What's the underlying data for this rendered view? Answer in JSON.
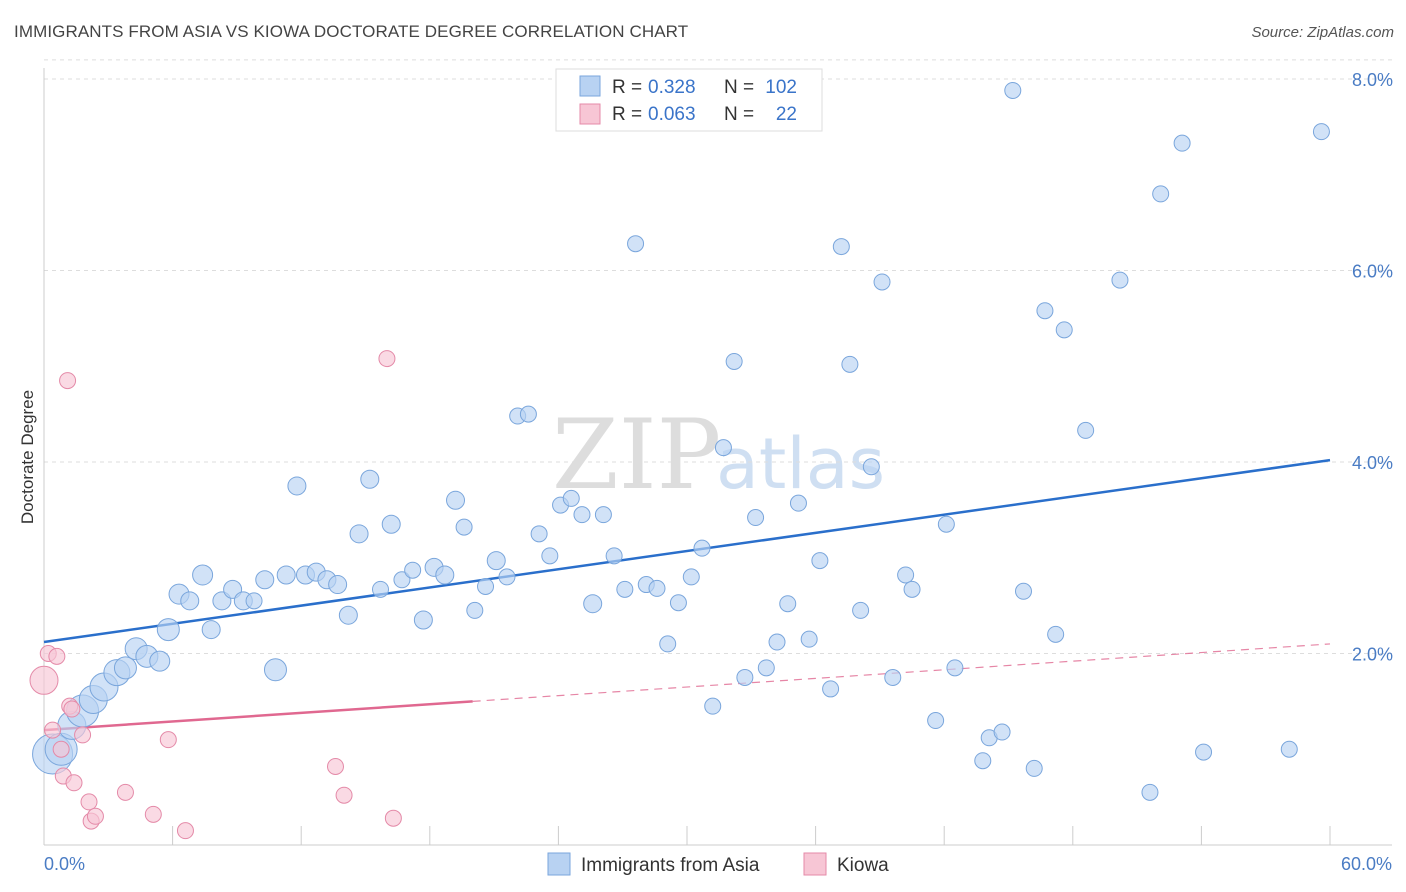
{
  "title": "IMMIGRANTS FROM ASIA VS KIOWA DOCTORATE DEGREE CORRELATION CHART",
  "source": "Source: ZipAtlas.com",
  "watermark": {
    "part1": "ZIP",
    "part2": "atlas"
  },
  "colors": {
    "blue_fill": "#b8d2f2",
    "blue_stroke": "#7aa6dc",
    "blue_line": "#2a6fcb",
    "pink_fill": "#f7c6d5",
    "pink_stroke": "#e48aa8",
    "pink_line": "#e06890",
    "grid": "#dddddd",
    "axis_text": "#4a7cc4"
  },
  "legend": {
    "rows": [
      {
        "r_label": "R =",
        "r_value": "0.328",
        "n_label": "N =",
        "n_value": "102"
      },
      {
        "r_label": "R =",
        "r_value": "0.063",
        "n_label": "N =",
        "n_value": "22"
      }
    ]
  },
  "bottom_legend": [
    "Immigrants from Asia",
    "Kiowa"
  ],
  "chart_data": {
    "type": "scatter",
    "title": "IMMIGRANTS FROM ASIA VS KIOWA DOCTORATE DEGREE CORRELATION CHART",
    "xlabel": "",
    "ylabel": "Doctorate Degree",
    "xlim": [
      0,
      60
    ],
    "ylim": [
      0,
      8.4
    ],
    "x_tick_labels": [
      "0.0%",
      "60.0%"
    ],
    "y_ticks": [
      2,
      4,
      6,
      8
    ],
    "y_tick_labels": [
      "2.0%",
      "4.0%",
      "6.0%",
      "8.0%"
    ],
    "grid": true,
    "legend_position": "top-center",
    "series": [
      {
        "name": "Immigrants from Asia",
        "color": "#b8d2f2",
        "trend": {
          "x": [
            0,
            60
          ],
          "y": [
            2.12,
            4.02
          ]
        },
        "points": [
          {
            "x": 0.4,
            "y": 0.95,
            "s": 20
          },
          {
            "x": 0.8,
            "y": 1.0,
            "s": 16
          },
          {
            "x": 1.3,
            "y": 1.25,
            "s": 14
          },
          {
            "x": 1.8,
            "y": 1.4,
            "s": 16
          },
          {
            "x": 2.3,
            "y": 1.52,
            "s": 14
          },
          {
            "x": 2.8,
            "y": 1.65,
            "s": 14
          },
          {
            "x": 3.4,
            "y": 1.8,
            "s": 13
          },
          {
            "x": 3.8,
            "y": 1.85,
            "s": 11
          },
          {
            "x": 4.3,
            "y": 2.05,
            "s": 11
          },
          {
            "x": 4.8,
            "y": 1.97,
            "s": 11
          },
          {
            "x": 5.4,
            "y": 1.92,
            "s": 10
          },
          {
            "x": 5.8,
            "y": 2.25,
            "s": 11
          },
          {
            "x": 6.3,
            "y": 2.62,
            "s": 10
          },
          {
            "x": 6.8,
            "y": 2.55,
            "s": 9
          },
          {
            "x": 7.4,
            "y": 2.82,
            "s": 10
          },
          {
            "x": 7.8,
            "y": 2.25,
            "s": 9
          },
          {
            "x": 8.3,
            "y": 2.55,
            "s": 9
          },
          {
            "x": 8.8,
            "y": 2.67,
            "s": 9
          },
          {
            "x": 9.3,
            "y": 2.55,
            "s": 9
          },
          {
            "x": 9.8,
            "y": 2.55,
            "s": 8
          },
          {
            "x": 10.3,
            "y": 2.77,
            "s": 9
          },
          {
            "x": 10.8,
            "y": 1.83,
            "s": 11
          },
          {
            "x": 11.3,
            "y": 2.82,
            "s": 9
          },
          {
            "x": 11.8,
            "y": 3.75,
            "s": 9
          },
          {
            "x": 12.2,
            "y": 2.82,
            "s": 9
          },
          {
            "x": 12.7,
            "y": 2.85,
            "s": 9
          },
          {
            "x": 13.2,
            "y": 2.77,
            "s": 9
          },
          {
            "x": 13.7,
            "y": 2.72,
            "s": 9
          },
          {
            "x": 14.2,
            "y": 2.4,
            "s": 9
          },
          {
            "x": 14.7,
            "y": 3.25,
            "s": 9
          },
          {
            "x": 15.2,
            "y": 3.82,
            "s": 9
          },
          {
            "x": 15.7,
            "y": 2.67,
            "s": 8
          },
          {
            "x": 16.2,
            "y": 3.35,
            "s": 9
          },
          {
            "x": 16.7,
            "y": 2.77,
            "s": 8
          },
          {
            "x": 17.2,
            "y": 2.87,
            "s": 8
          },
          {
            "x": 17.7,
            "y": 2.35,
            "s": 9
          },
          {
            "x": 18.2,
            "y": 2.9,
            "s": 9
          },
          {
            "x": 18.7,
            "y": 2.82,
            "s": 9
          },
          {
            "x": 19.2,
            "y": 3.6,
            "s": 9
          },
          {
            "x": 19.6,
            "y": 3.32,
            "s": 8
          },
          {
            "x": 20.1,
            "y": 2.45,
            "s": 8
          },
          {
            "x": 20.6,
            "y": 2.7,
            "s": 8
          },
          {
            "x": 21.1,
            "y": 2.97,
            "s": 9
          },
          {
            "x": 21.6,
            "y": 2.8,
            "s": 8
          },
          {
            "x": 22.1,
            "y": 4.48,
            "s": 8
          },
          {
            "x": 22.6,
            "y": 4.5,
            "s": 8
          },
          {
            "x": 23.1,
            "y": 3.25,
            "s": 8
          },
          {
            "x": 23.6,
            "y": 3.02,
            "s": 8
          },
          {
            "x": 24.1,
            "y": 3.55,
            "s": 8
          },
          {
            "x": 24.6,
            "y": 3.62,
            "s": 8
          },
          {
            "x": 25.1,
            "y": 3.45,
            "s": 8
          },
          {
            "x": 25.6,
            "y": 2.52,
            "s": 9
          },
          {
            "x": 26.1,
            "y": 3.45,
            "s": 8
          },
          {
            "x": 26.6,
            "y": 3.02,
            "s": 8
          },
          {
            "x": 27.1,
            "y": 2.67,
            "s": 8
          },
          {
            "x": 27.6,
            "y": 6.28,
            "s": 8
          },
          {
            "x": 28.1,
            "y": 2.72,
            "s": 8
          },
          {
            "x": 28.6,
            "y": 2.68,
            "s": 8
          },
          {
            "x": 29.1,
            "y": 2.1,
            "s": 8
          },
          {
            "x": 29.6,
            "y": 2.53,
            "s": 8
          },
          {
            "x": 30.2,
            "y": 2.8,
            "s": 8
          },
          {
            "x": 30.7,
            "y": 3.1,
            "s": 8
          },
          {
            "x": 31.2,
            "y": 1.45,
            "s": 8
          },
          {
            "x": 31.7,
            "y": 4.15,
            "s": 8
          },
          {
            "x": 32.2,
            "y": 5.05,
            "s": 8
          },
          {
            "x": 32.7,
            "y": 1.75,
            "s": 8
          },
          {
            "x": 33.2,
            "y": 3.42,
            "s": 8
          },
          {
            "x": 33.7,
            "y": 1.85,
            "s": 8
          },
          {
            "x": 34.2,
            "y": 2.12,
            "s": 8
          },
          {
            "x": 34.7,
            "y": 2.52,
            "s": 8
          },
          {
            "x": 35.2,
            "y": 3.57,
            "s": 8
          },
          {
            "x": 35.7,
            "y": 2.15,
            "s": 8
          },
          {
            "x": 36.2,
            "y": 2.97,
            "s": 8
          },
          {
            "x": 36.7,
            "y": 1.63,
            "s": 8
          },
          {
            "x": 37.2,
            "y": 6.25,
            "s": 8
          },
          {
            "x": 37.6,
            "y": 5.02,
            "s": 8
          },
          {
            "x": 38.1,
            "y": 2.45,
            "s": 8
          },
          {
            "x": 38.6,
            "y": 3.95,
            "s": 8
          },
          {
            "x": 39.1,
            "y": 5.88,
            "s": 8
          },
          {
            "x": 39.6,
            "y": 1.75,
            "s": 8
          },
          {
            "x": 40.2,
            "y": 2.82,
            "s": 8
          },
          {
            "x": 40.5,
            "y": 2.67,
            "s": 8
          },
          {
            "x": 41.6,
            "y": 1.3,
            "s": 8
          },
          {
            "x": 42.1,
            "y": 3.35,
            "s": 8
          },
          {
            "x": 42.5,
            "y": 1.85,
            "s": 8
          },
          {
            "x": 43.8,
            "y": 0.88,
            "s": 8
          },
          {
            "x": 44.1,
            "y": 1.12,
            "s": 8
          },
          {
            "x": 44.7,
            "y": 1.18,
            "s": 8
          },
          {
            "x": 45.2,
            "y": 7.88,
            "s": 8
          },
          {
            "x": 45.7,
            "y": 2.65,
            "s": 8
          },
          {
            "x": 46.2,
            "y": 0.8,
            "s": 8
          },
          {
            "x": 46.7,
            "y": 5.58,
            "s": 8
          },
          {
            "x": 47.2,
            "y": 2.2,
            "s": 8
          },
          {
            "x": 47.6,
            "y": 5.38,
            "s": 8
          },
          {
            "x": 48.6,
            "y": 4.33,
            "s": 8
          },
          {
            "x": 50.2,
            "y": 5.9,
            "s": 8
          },
          {
            "x": 51.6,
            "y": 0.55,
            "s": 8
          },
          {
            "x": 52.1,
            "y": 6.8,
            "s": 8
          },
          {
            "x": 53.1,
            "y": 7.33,
            "s": 8
          },
          {
            "x": 54.1,
            "y": 0.97,
            "s": 8
          },
          {
            "x": 58.1,
            "y": 1.0,
            "s": 8
          },
          {
            "x": 59.6,
            "y": 7.45,
            "s": 8
          }
        ]
      },
      {
        "name": "Kiowa",
        "color": "#f7c6d5",
        "trend": {
          "x": [
            0,
            20
          ],
          "y": [
            1.2,
            1.5
          ],
          "dashed_to": {
            "x": 60,
            "y": 2.1
          }
        },
        "points": [
          {
            "x": 0.0,
            "y": 1.72,
            "s": 14
          },
          {
            "x": 0.2,
            "y": 2.0,
            "s": 8
          },
          {
            "x": 0.4,
            "y": 1.2,
            "s": 8
          },
          {
            "x": 0.6,
            "y": 1.97,
            "s": 8
          },
          {
            "x": 0.8,
            "y": 1.0,
            "s": 8
          },
          {
            "x": 0.9,
            "y": 0.72,
            "s": 8
          },
          {
            "x": 1.1,
            "y": 4.85,
            "s": 8
          },
          {
            "x": 1.2,
            "y": 1.45,
            "s": 8
          },
          {
            "x": 1.3,
            "y": 1.42,
            "s": 8
          },
          {
            "x": 1.4,
            "y": 0.65,
            "s": 8
          },
          {
            "x": 1.8,
            "y": 1.15,
            "s": 8
          },
          {
            "x": 2.1,
            "y": 0.45,
            "s": 8
          },
          {
            "x": 2.2,
            "y": 0.25,
            "s": 8
          },
          {
            "x": 2.4,
            "y": 0.3,
            "s": 8
          },
          {
            "x": 3.8,
            "y": 0.55,
            "s": 8
          },
          {
            "x": 5.1,
            "y": 0.32,
            "s": 8
          },
          {
            "x": 5.8,
            "y": 1.1,
            "s": 8
          },
          {
            "x": 6.6,
            "y": 0.15,
            "s": 8
          },
          {
            "x": 13.6,
            "y": 0.82,
            "s": 8
          },
          {
            "x": 14.0,
            "y": 0.52,
            "s": 8
          },
          {
            "x": 16.0,
            "y": 5.08,
            "s": 8
          },
          {
            "x": 16.3,
            "y": 0.28,
            "s": 8
          }
        ]
      }
    ]
  }
}
